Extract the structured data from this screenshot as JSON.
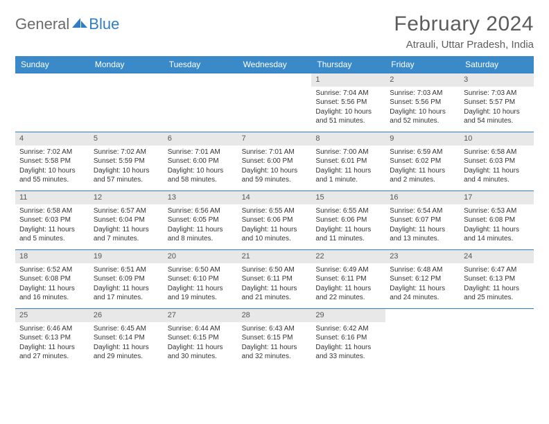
{
  "brand": {
    "part1": "General",
    "part2": "Blue"
  },
  "title": "February 2024",
  "location": "Atrauli, Uttar Pradesh, India",
  "colors": {
    "header_bg": "#3a8ac9",
    "header_text": "#ffffff",
    "band_bg": "#e8e8e8",
    "row_border": "#2f7dc4",
    "text": "#333333",
    "logo_gray": "#6a6a6a",
    "logo_blue": "#2f7dc4"
  },
  "dow": [
    "Sunday",
    "Monday",
    "Tuesday",
    "Wednesday",
    "Thursday",
    "Friday",
    "Saturday"
  ],
  "weeks": [
    [
      null,
      null,
      null,
      null,
      {
        "n": "1",
        "sr": "7:04 AM",
        "ss": "5:56 PM",
        "dl": "10 hours and 51 minutes."
      },
      {
        "n": "2",
        "sr": "7:03 AM",
        "ss": "5:56 PM",
        "dl": "10 hours and 52 minutes."
      },
      {
        "n": "3",
        "sr": "7:03 AM",
        "ss": "5:57 PM",
        "dl": "10 hours and 54 minutes."
      }
    ],
    [
      {
        "n": "4",
        "sr": "7:02 AM",
        "ss": "5:58 PM",
        "dl": "10 hours and 55 minutes."
      },
      {
        "n": "5",
        "sr": "7:02 AM",
        "ss": "5:59 PM",
        "dl": "10 hours and 57 minutes."
      },
      {
        "n": "6",
        "sr": "7:01 AM",
        "ss": "6:00 PM",
        "dl": "10 hours and 58 minutes."
      },
      {
        "n": "7",
        "sr": "7:01 AM",
        "ss": "6:00 PM",
        "dl": "10 hours and 59 minutes."
      },
      {
        "n": "8",
        "sr": "7:00 AM",
        "ss": "6:01 PM",
        "dl": "11 hours and 1 minute."
      },
      {
        "n": "9",
        "sr": "6:59 AM",
        "ss": "6:02 PM",
        "dl": "11 hours and 2 minutes."
      },
      {
        "n": "10",
        "sr": "6:58 AM",
        "ss": "6:03 PM",
        "dl": "11 hours and 4 minutes."
      }
    ],
    [
      {
        "n": "11",
        "sr": "6:58 AM",
        "ss": "6:03 PM",
        "dl": "11 hours and 5 minutes."
      },
      {
        "n": "12",
        "sr": "6:57 AM",
        "ss": "6:04 PM",
        "dl": "11 hours and 7 minutes."
      },
      {
        "n": "13",
        "sr": "6:56 AM",
        "ss": "6:05 PM",
        "dl": "11 hours and 8 minutes."
      },
      {
        "n": "14",
        "sr": "6:55 AM",
        "ss": "6:06 PM",
        "dl": "11 hours and 10 minutes."
      },
      {
        "n": "15",
        "sr": "6:55 AM",
        "ss": "6:06 PM",
        "dl": "11 hours and 11 minutes."
      },
      {
        "n": "16",
        "sr": "6:54 AM",
        "ss": "6:07 PM",
        "dl": "11 hours and 13 minutes."
      },
      {
        "n": "17",
        "sr": "6:53 AM",
        "ss": "6:08 PM",
        "dl": "11 hours and 14 minutes."
      }
    ],
    [
      {
        "n": "18",
        "sr": "6:52 AM",
        "ss": "6:08 PM",
        "dl": "11 hours and 16 minutes."
      },
      {
        "n": "19",
        "sr": "6:51 AM",
        "ss": "6:09 PM",
        "dl": "11 hours and 17 minutes."
      },
      {
        "n": "20",
        "sr": "6:50 AM",
        "ss": "6:10 PM",
        "dl": "11 hours and 19 minutes."
      },
      {
        "n": "21",
        "sr": "6:50 AM",
        "ss": "6:11 PM",
        "dl": "11 hours and 21 minutes."
      },
      {
        "n": "22",
        "sr": "6:49 AM",
        "ss": "6:11 PM",
        "dl": "11 hours and 22 minutes."
      },
      {
        "n": "23",
        "sr": "6:48 AM",
        "ss": "6:12 PM",
        "dl": "11 hours and 24 minutes."
      },
      {
        "n": "24",
        "sr": "6:47 AM",
        "ss": "6:13 PM",
        "dl": "11 hours and 25 minutes."
      }
    ],
    [
      {
        "n": "25",
        "sr": "6:46 AM",
        "ss": "6:13 PM",
        "dl": "11 hours and 27 minutes."
      },
      {
        "n": "26",
        "sr": "6:45 AM",
        "ss": "6:14 PM",
        "dl": "11 hours and 29 minutes."
      },
      {
        "n": "27",
        "sr": "6:44 AM",
        "ss": "6:15 PM",
        "dl": "11 hours and 30 minutes."
      },
      {
        "n": "28",
        "sr": "6:43 AM",
        "ss": "6:15 PM",
        "dl": "11 hours and 32 minutes."
      },
      {
        "n": "29",
        "sr": "6:42 AM",
        "ss": "6:16 PM",
        "dl": "11 hours and 33 minutes."
      },
      null,
      null
    ]
  ],
  "labels": {
    "sunrise": "Sunrise: ",
    "sunset": "Sunset: ",
    "daylight": "Daylight: "
  }
}
